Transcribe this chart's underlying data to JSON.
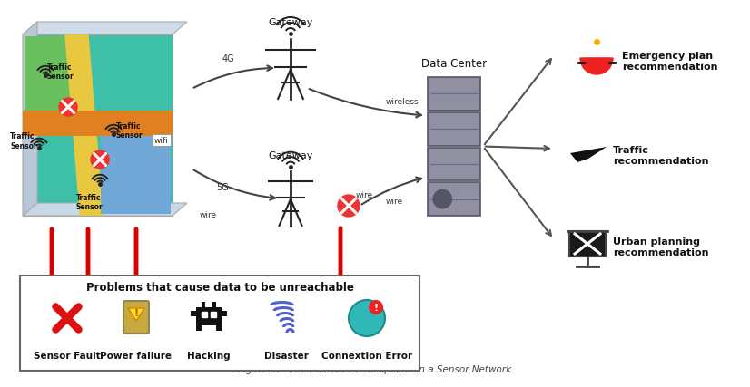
{
  "title": "Figure 1: Overview of a Data Pipeline in a Sensor Network",
  "bg_color": "#ffffff",
  "map_bg": "#3dbfa8",
  "map_green": "#6abf5e",
  "map_yellow": "#e8c840",
  "map_orange": "#e08020",
  "map_blue": "#70a8d8",
  "map_side_left": "#b8c8d8",
  "map_side_bottom": "#c8d8e8",
  "map_side_top": "#d0dce8",
  "dark": "#222222",
  "red": "#dd2222",
  "gray_server": "#9999aa",
  "teal_conn": "#30b0b0",
  "gateway_label": "Gateway",
  "data_center_label": "Data Center",
  "recommendations": [
    "Emergency plan\nrecommendation",
    "Traffic\nrecommendation",
    "Urban planning\nrecommendation"
  ],
  "sensor_label": "Traffic\nSensor",
  "problems_title": "Problems that cause data to be unreachable",
  "problems": [
    "Sensor Fault",
    "Power failure",
    "Hacking",
    "Disaster",
    "Connextion Error"
  ]
}
